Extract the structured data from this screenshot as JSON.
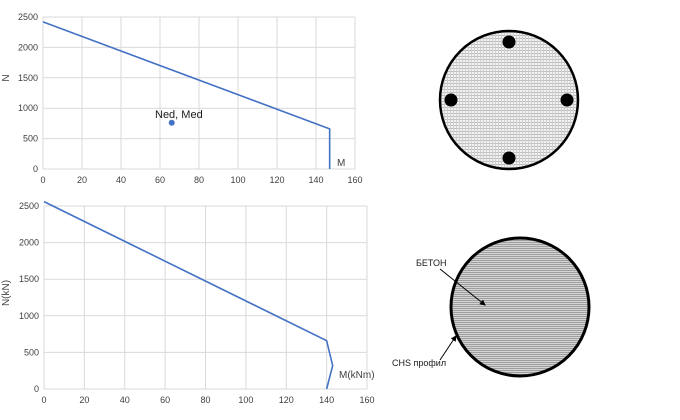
{
  "chart_data": [
    {
      "type": "line",
      "title": "",
      "xlabel": "M",
      "ylabel": "N",
      "xlim": [
        0,
        160
      ],
      "ylim": [
        0,
        2500
      ],
      "xticks": [
        0,
        20,
        40,
        60,
        80,
        100,
        120,
        140,
        160
      ],
      "yticks": [
        0,
        500,
        1000,
        1500,
        2000,
        2500
      ],
      "grid": true,
      "series": [
        {
          "x": [
            0,
            147,
            147
          ],
          "y": [
            2420,
            660,
            0
          ],
          "color": "#4472c4"
        }
      ],
      "points": [
        {
          "label": "Ned, Med",
          "x": 66,
          "y": 760,
          "color": "#4472c4"
        }
      ]
    },
    {
      "type": "line",
      "title": "",
      "xlabel": "M(kNm)",
      "ylabel": "N(kN)",
      "xlim": [
        0,
        160
      ],
      "ylim": [
        0,
        2500
      ],
      "xticks": [
        0,
        20,
        40,
        60,
        80,
        100,
        120,
        140,
        160
      ],
      "yticks": [
        0,
        500,
        1000,
        1500,
        2000,
        2500
      ],
      "grid": true,
      "series": [
        {
          "x": [
            0,
            140,
            143,
            140
          ],
          "y": [
            2560,
            660,
            320,
            0
          ],
          "color": "#4472c4"
        }
      ]
    }
  ],
  "diagrams": {
    "section_top": {
      "bars": 4
    },
    "section_bottom": {
      "concrete_label": "БЕТОН",
      "profile_label": "CHS профил"
    }
  }
}
